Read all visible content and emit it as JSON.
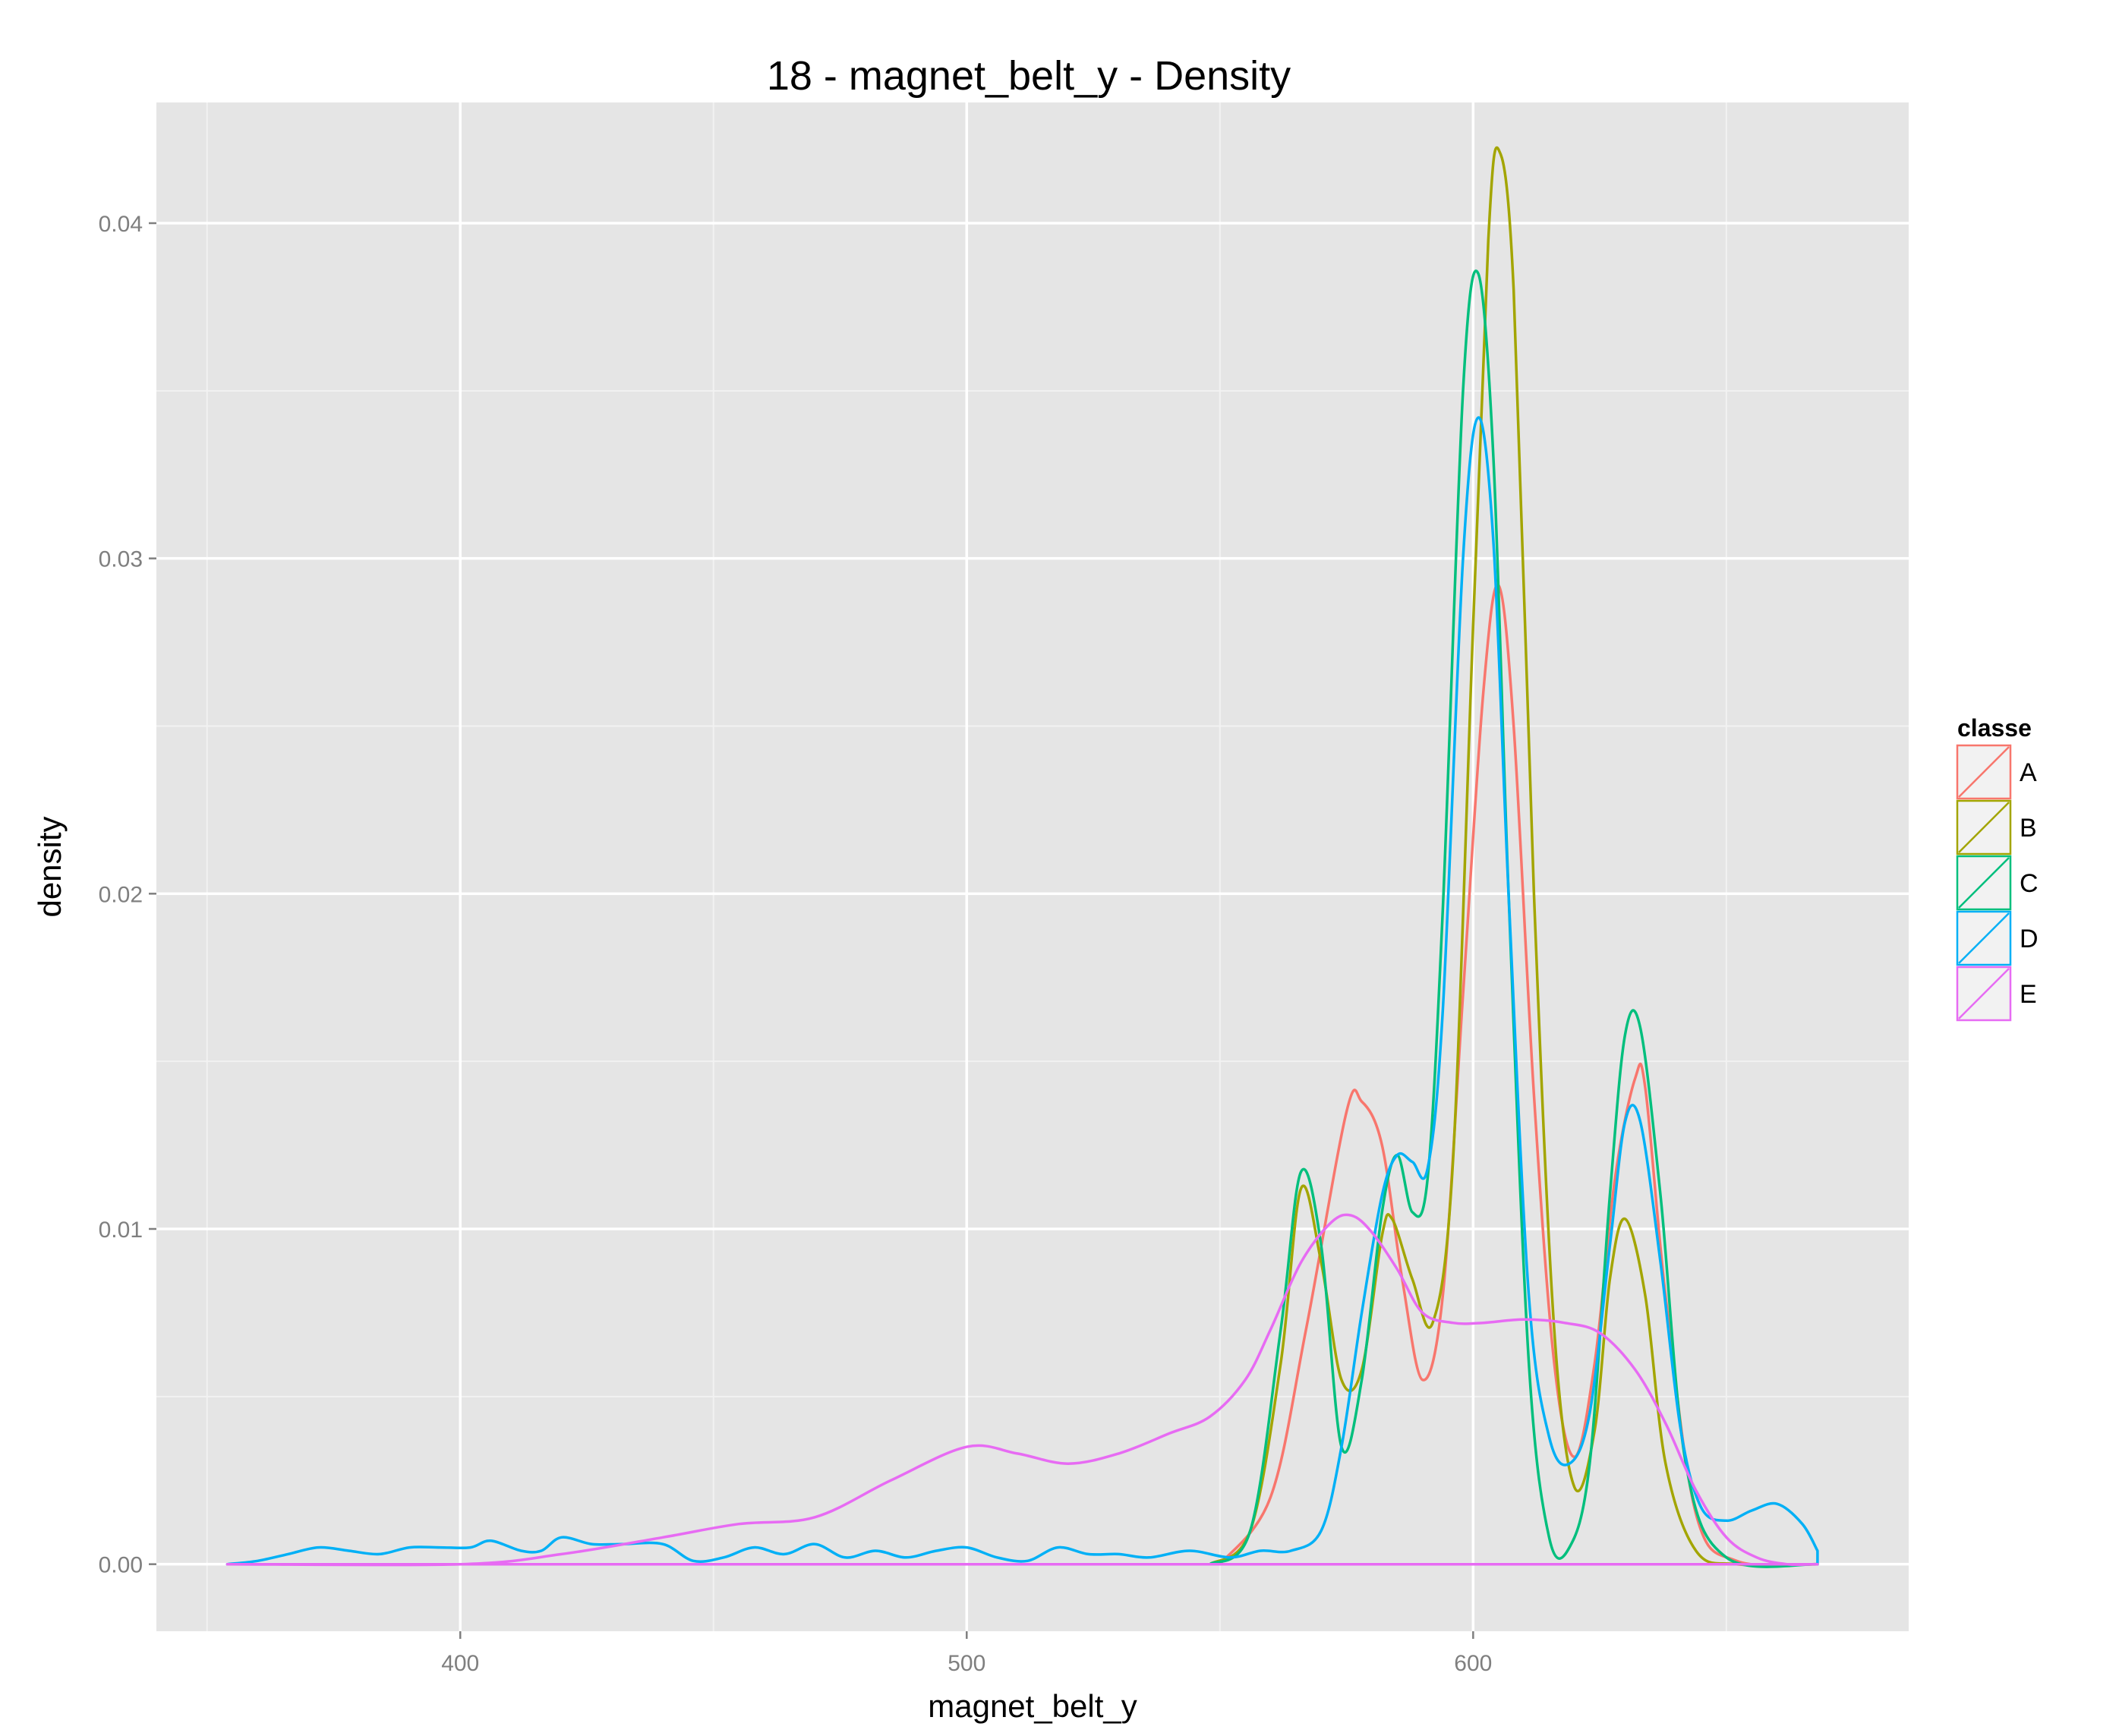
{
  "chart_data": {
    "type": "line",
    "title": "18 - magnet_belt_y - Density",
    "xlabel": "magnet_belt_y",
    "ylabel": "density",
    "xlim": [
      340,
      686
    ],
    "ylim": [
      -0.002,
      0.0436
    ],
    "xticks": [
      400,
      500,
      600
    ],
    "xtick_labels": [
      "400",
      "500",
      "600"
    ],
    "yticks": [
      0.0,
      0.01,
      0.02,
      0.03,
      0.04
    ],
    "ytick_labels": [
      "0.00",
      "0.01",
      "0.02",
      "0.03",
      "0.04"
    ],
    "grid": true,
    "legend": {
      "title": "classe",
      "position": "right"
    },
    "series": [
      {
        "name": "A",
        "color": "#F8766D",
        "x": [
          550,
          560,
          567,
          575,
          578,
          582,
          586,
          590,
          594,
          598,
          602,
          605,
          608,
          612,
          616,
          620,
          624,
          628,
          632,
          634,
          638,
          644,
          652,
          668
        ],
        "y": [
          0.0,
          0.002,
          0.007,
          0.0135,
          0.0138,
          0.0125,
          0.0085,
          0.0055,
          0.008,
          0.017,
          0.026,
          0.0292,
          0.025,
          0.014,
          0.006,
          0.0032,
          0.006,
          0.0115,
          0.0145,
          0.0142,
          0.008,
          0.0015,
          0.0001,
          0.0
        ]
      },
      {
        "name": "B",
        "color": "#A3A500",
        "x": [
          548,
          556,
          562,
          566,
          570,
          574,
          578,
          582,
          584,
          588,
          592,
          596,
          600,
          603,
          605,
          608,
          612,
          616,
          620,
          624,
          627,
          630,
          634,
          638,
          644,
          652,
          668
        ],
        "y": [
          0.0,
          0.001,
          0.006,
          0.0112,
          0.009,
          0.0055,
          0.0058,
          0.0098,
          0.0103,
          0.0085,
          0.0072,
          0.012,
          0.028,
          0.0395,
          0.0422,
          0.038,
          0.02,
          0.007,
          0.0023,
          0.004,
          0.0085,
          0.0103,
          0.008,
          0.003,
          0.0004,
          0.0,
          0.0
        ]
      },
      {
        "name": "C",
        "color": "#00BF7D",
        "x": [
          548,
          556,
          562,
          566,
          570,
          574,
          578,
          582,
          585,
          588,
          591,
          594,
          598,
          601,
          604,
          607,
          611,
          615,
          619,
          623,
          627,
          630,
          633,
          637,
          642,
          650,
          668
        ],
        "y": [
          0.0,
          0.001,
          0.007,
          0.0117,
          0.0095,
          0.0035,
          0.0055,
          0.0105,
          0.0122,
          0.0105,
          0.0115,
          0.0195,
          0.035,
          0.0385,
          0.033,
          0.02,
          0.006,
          0.0008,
          0.0005,
          0.003,
          0.011,
          0.0158,
          0.016,
          0.011,
          0.003,
          0.0002,
          0.0
        ]
      },
      {
        "name": "D",
        "color": "#00B0F6",
        "x": [
          354,
          360,
          366,
          372,
          378,
          384,
          390,
          396,
          402,
          406,
          412,
          416,
          420,
          426,
          432,
          440,
          446,
          452,
          458,
          464,
          470,
          476,
          482,
          488,
          494,
          500,
          506,
          512,
          518,
          524,
          530,
          536,
          544,
          552,
          558,
          564,
          570,
          574,
          578,
          582,
          585,
          588,
          591,
          594,
          598,
          601,
          604,
          607,
          611,
          615,
          619,
          623,
          627,
          630,
          633,
          637,
          641,
          645,
          650,
          655,
          660,
          665,
          668
        ],
        "y": [
          0.0,
          0.0001,
          0.0003,
          0.0005,
          0.0004,
          0.0003,
          0.0005,
          0.0005,
          0.0005,
          0.0007,
          0.0004,
          0.0004,
          0.0008,
          0.0006,
          0.0006,
          0.0006,
          0.0001,
          0.0002,
          0.0005,
          0.0003,
          0.0006,
          0.0002,
          0.0004,
          0.0002,
          0.0004,
          0.0005,
          0.0002,
          0.0001,
          0.0005,
          0.0003,
          0.0003,
          0.0002,
          0.0004,
          0.0002,
          0.0004,
          0.0004,
          0.001,
          0.0035,
          0.0075,
          0.011,
          0.0122,
          0.012,
          0.0118,
          0.0165,
          0.03,
          0.0342,
          0.0305,
          0.02,
          0.008,
          0.0038,
          0.003,
          0.0045,
          0.0095,
          0.0132,
          0.0132,
          0.009,
          0.004,
          0.0017,
          0.0013,
          0.0016,
          0.0018,
          0.0012,
          0.0004
        ]
      },
      {
        "name": "E",
        "color": "#E76BF3",
        "x": [
          354,
          400,
          420,
          440,
          455,
          470,
          485,
          500,
          510,
          520,
          530,
          540,
          548,
          555,
          560,
          566,
          572,
          576,
          580,
          585,
          590,
          596,
          602,
          610,
          618,
          625,
          632,
          638,
          644,
          650,
          656,
          662,
          668
        ],
        "y": [
          0.0,
          0.0,
          0.0003,
          0.0008,
          0.0012,
          0.0014,
          0.0025,
          0.0035,
          0.0033,
          0.003,
          0.0033,
          0.0039,
          0.0044,
          0.0055,
          0.007,
          0.009,
          0.0102,
          0.0104,
          0.0099,
          0.0088,
          0.0075,
          0.0072,
          0.0072,
          0.0073,
          0.0072,
          0.0069,
          0.0058,
          0.0042,
          0.0022,
          0.0008,
          0.0002,
          0.0,
          0.0
        ]
      }
    ]
  }
}
